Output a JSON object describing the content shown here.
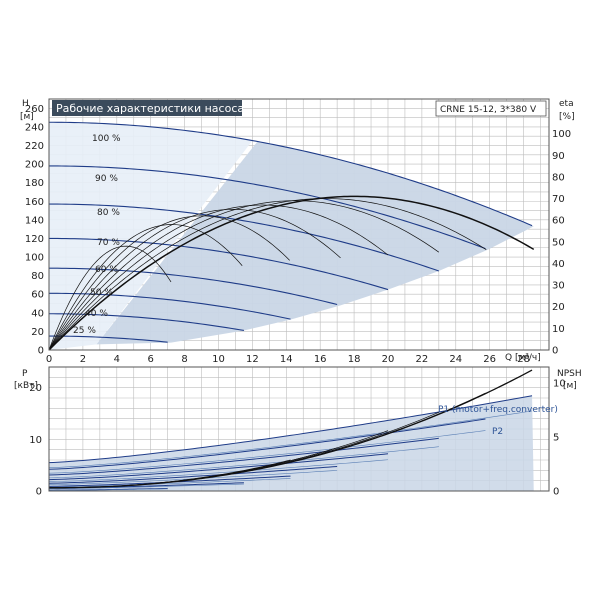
{
  "chart_data": [
    {
      "type": "line",
      "title": "Рабочие характеристики насоса",
      "model_label": "CRNE 15-12, 3*380 V",
      "xlabel": "Q [м³/ч]",
      "ylabel": "H",
      "ylabel_unit": "[м]",
      "right_label": "eta",
      "right_unit": "[%]",
      "xlim": [
        0,
        29.5
      ],
      "ylim": [
        0,
        270
      ],
      "eta_lim": [
        0,
        116
      ],
      "x_ticks": [
        0,
        2,
        4,
        6,
        8,
        10,
        12,
        14,
        16,
        18,
        20,
        22,
        24,
        26,
        28
      ],
      "y_ticks": [
        0,
        20,
        40,
        60,
        80,
        100,
        120,
        140,
        160,
        180,
        200,
        220,
        240,
        260
      ],
      "eta_ticks": [
        0,
        10,
        20,
        30,
        40,
        50,
        60,
        70,
        80,
        90,
        100
      ],
      "speed_curves": [
        {
          "label": "100 %",
          "h0": 245,
          "qmax": 28.6,
          "hend": 133
        },
        {
          "label": "90 %",
          "h0": 198,
          "qmax": 25.9,
          "hend": 108
        },
        {
          "label": "80 %",
          "h0": 157,
          "qmax": 23.0,
          "hend": 85
        },
        {
          "label": "70 %",
          "h0": 120,
          "qmax": 20.0,
          "hend": 65
        },
        {
          "label": "60 %",
          "h0": 88,
          "qmax": 17.2,
          "hend": 48
        },
        {
          "label": "50 %",
          "h0": 61,
          "qmax": 14.3,
          "hend": 33
        },
        {
          "label": "40 %",
          "h0": 39,
          "qmax": 11.5,
          "hend": 21
        },
        {
          "label": "25 %",
          "h0": 15,
          "qmax": 7.2,
          "hend": 8
        }
      ],
      "eta_curves": [
        {
          "qmax": 28.6,
          "peak": 71
        },
        {
          "qmax": 25.9,
          "peak": 70
        },
        {
          "qmax": 23.0,
          "peak": 69
        },
        {
          "qmax": 20.0,
          "peak": 67
        },
        {
          "qmax": 17.2,
          "peak": 65
        },
        {
          "qmax": 14.3,
          "peak": 62
        },
        {
          "qmax": 11.5,
          "peak": 58
        },
        {
          "qmax": 7.2,
          "peak": 48
        }
      ],
      "grid": true
    },
    {
      "type": "line",
      "ylabel": "P",
      "ylabel_unit": "[кВт]",
      "right_label": "NPSH",
      "right_unit": "[м]",
      "xlim": [
        0,
        29.5
      ],
      "ylim": [
        0,
        24
      ],
      "npsh_lim": [
        0,
        11.5
      ],
      "y_ticks": [
        0,
        10,
        20
      ],
      "npsh_ticks": [
        0,
        5,
        10
      ],
      "series": [
        {
          "name": "P1 (motor+freq.converter)",
          "start": 5.5,
          "end": 18.5,
          "qmax": 28.6
        },
        {
          "name": "P2",
          "start": 4.5,
          "end": 15.5,
          "qmax": 28.6
        }
      ],
      "speed_power": [
        {
          "start": 5.5,
          "end": 18.5,
          "qmax": 28.6
        },
        {
          "start": 4.2,
          "end": 14.0,
          "qmax": 25.9
        },
        {
          "start": 3.1,
          "end": 10.2,
          "qmax": 23.0
        },
        {
          "start": 2.2,
          "end": 7.2,
          "qmax": 20.0
        },
        {
          "start": 1.5,
          "end": 4.8,
          "qmax": 17.2
        },
        {
          "start": 0.9,
          "end": 2.9,
          "qmax": 14.3
        },
        {
          "start": 0.5,
          "end": 1.6,
          "qmax": 11.5
        },
        {
          "start": 0.15,
          "end": 0.5,
          "qmax": 7.2
        }
      ],
      "npsh": [
        {
          "qmax": 28.6,
          "end": 11.3
        },
        {
          "qmax": 25.9,
          "end": 9.2
        },
        {
          "qmax": 23.0,
          "end": 7.3
        },
        {
          "qmax": 20.0,
          "end": 5.6
        },
        {
          "qmax": 17.2,
          "end": 4.1
        },
        {
          "qmax": 14.3,
          "end": 2.9
        }
      ],
      "grid": true
    }
  ],
  "colors": {
    "curve": "#1f3c88",
    "eta": "#111111",
    "fill": "#c9d6e6",
    "fill_light": "#e7eef7",
    "title_bg": "#3b4b5c",
    "title_fg": "#ffffff"
  }
}
